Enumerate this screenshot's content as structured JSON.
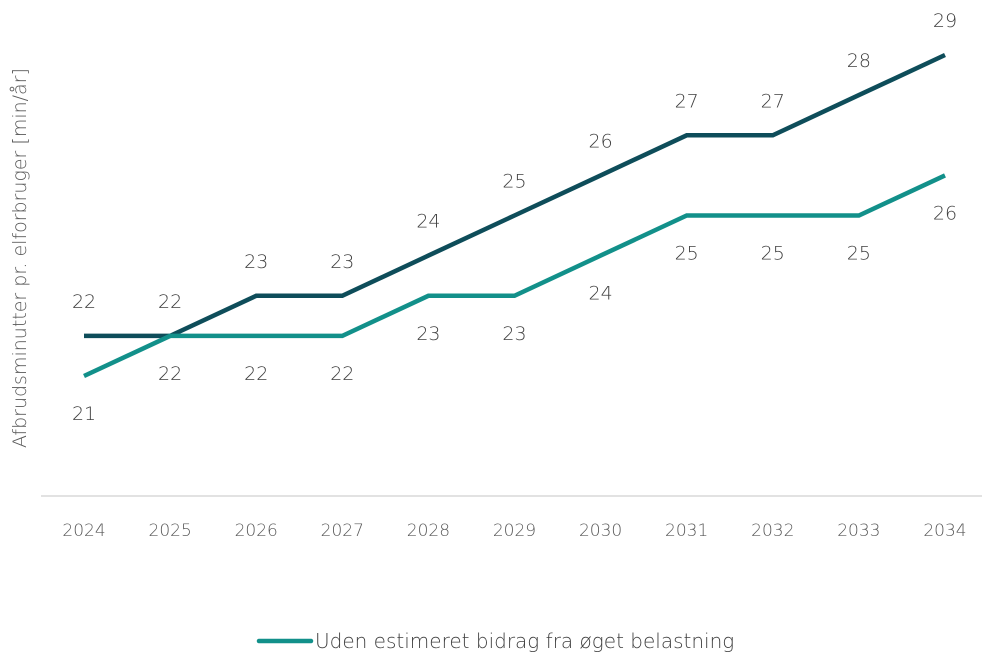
{
  "chart_data": {
    "type": "line",
    "title": "",
    "xlabel": "",
    "ylabel": "Afbrudsminutter pr. elforbruger [min/år]",
    "categories": [
      "2024",
      "2025",
      "2026",
      "2027",
      "2028",
      "2029",
      "2030",
      "2031",
      "2032",
      "2033",
      "2034"
    ],
    "ylim": [
      18,
      30
    ],
    "grid": false,
    "legend_placement": "bottom",
    "series": [
      {
        "key": "upper",
        "name": "",
        "color": "#0E4D5A",
        "values": [
          22,
          22,
          23,
          23,
          24,
          25,
          26,
          27,
          27,
          28,
          29
        ],
        "label_position": "above"
      },
      {
        "key": "lower",
        "name": "Uden estimeret bidrag fra øget belastning",
        "color": "#12908A",
        "values": [
          21,
          22,
          22,
          22,
          23,
          23,
          24,
          25,
          25,
          25,
          26
        ],
        "label_position": "below"
      }
    ],
    "legend_series": "lower"
  }
}
